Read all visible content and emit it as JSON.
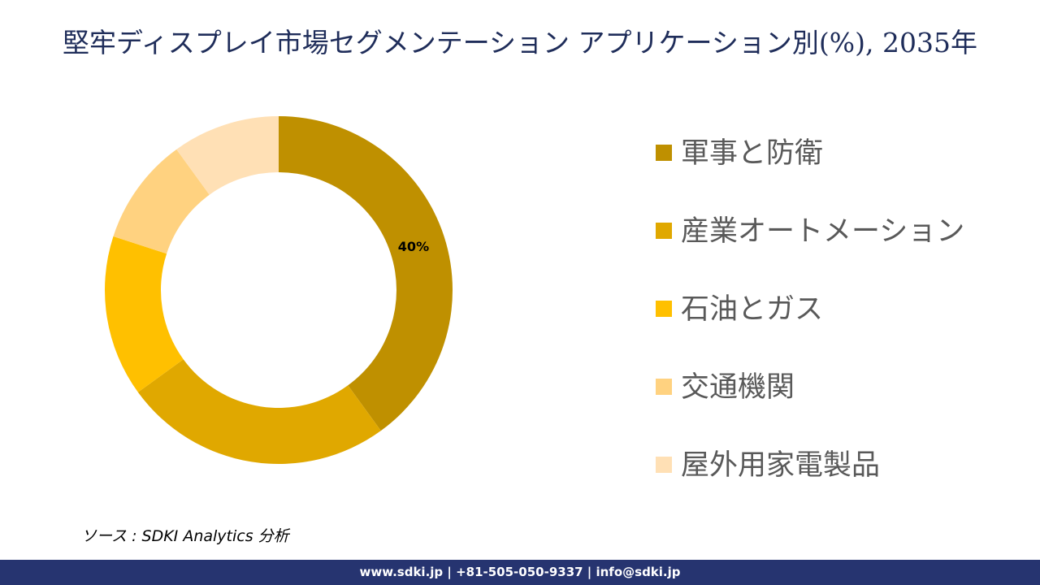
{
  "chart_data": {
    "type": "donut",
    "title": "堅牢ディスプレイ市場セグメンテーション アプリケーション別(%), 2035年",
    "categories": [
      "軍事と防衛",
      "産業オートメーション",
      "石油とガス",
      "交通機関",
      "屋外用家電製品"
    ],
    "values": [
      40,
      25,
      15,
      10,
      10
    ],
    "value_labels": [
      "40%",
      null,
      null,
      null,
      null
    ],
    "colors": [
      "#bf9000",
      "#e0a800",
      "#ffc000",
      "#ffd280",
      "#ffe0b5"
    ],
    "source": "ソース : SDKI Analytics 分析"
  },
  "footer": "www.sdki.jp | +81-505-050-9337 | info@sdki.jp"
}
